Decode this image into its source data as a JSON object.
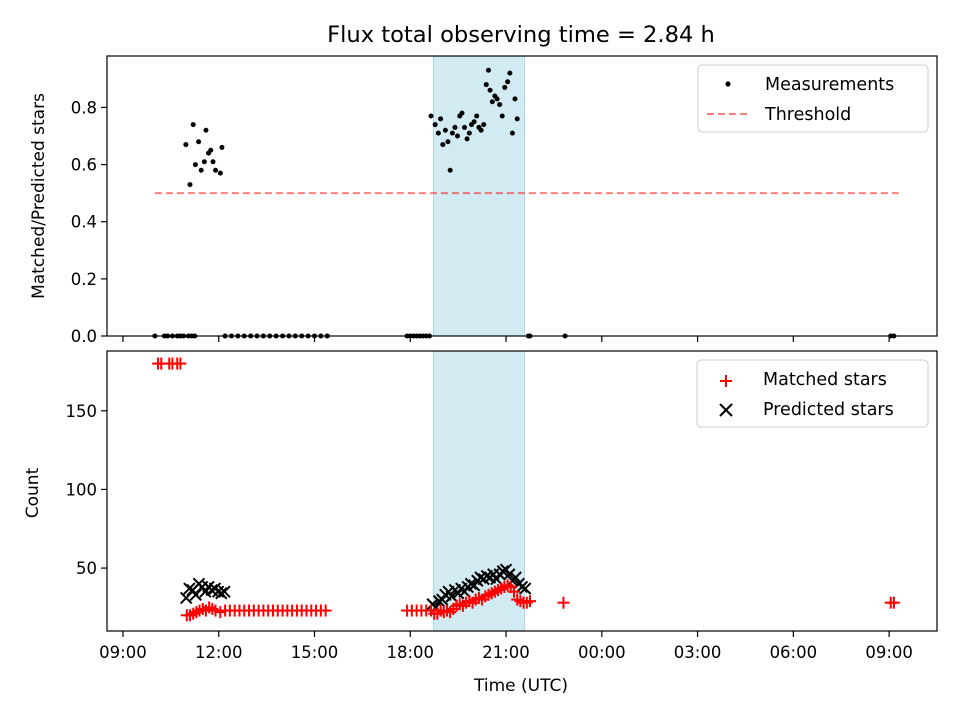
{
  "chart_data": {
    "title": "Flux total observing time = 2.84 h",
    "type": "scatter",
    "shaded_window": {
      "start_h": 18.73,
      "end_h": 21.58,
      "color": "#add8e6"
    },
    "x_axis": {
      "label": "Time (UTC)",
      "ticks": [
        {
          "h": 9,
          "label": "09:00"
        },
        {
          "h": 12,
          "label": "12:00"
        },
        {
          "h": 15,
          "label": "15:00"
        },
        {
          "h": 18,
          "label": "18:00"
        },
        {
          "h": 21,
          "label": "21:00"
        },
        {
          "h": 24,
          "label": "00:00"
        },
        {
          "h": 27,
          "label": "03:00"
        },
        {
          "h": 30,
          "label": "06:00"
        },
        {
          "h": 33,
          "label": "09:00"
        }
      ]
    },
    "panels": [
      {
        "id": "ratio",
        "ylabel": "Matched/Predicted stars",
        "ylim": [
          0,
          0.98
        ],
        "yticks": [
          {
            "v": 0.0,
            "label": "0.0"
          },
          {
            "v": 0.2,
            "label": "0.2"
          },
          {
            "v": 0.4,
            "label": "0.4"
          },
          {
            "v": 0.6,
            "label": "0.6"
          },
          {
            "v": 0.8,
            "label": "0.8"
          }
        ],
        "legend": {
          "position": "upper right",
          "items": [
            "Measurements",
            "Threshold"
          ]
        },
        "threshold": {
          "name": "Threshold",
          "y": 0.5,
          "x_range": [
            10.0,
            33.3
          ],
          "color": "#ff0000",
          "opacity": 0.5,
          "dashed": true
        },
        "measurements": {
          "name": "Measurements",
          "color": "#000000",
          "points": [
            [
              10.97,
              0.67
            ],
            [
              11.1,
              0.53
            ],
            [
              11.2,
              0.74
            ],
            [
              11.27,
              0.6
            ],
            [
              11.37,
              0.68
            ],
            [
              11.45,
              0.58
            ],
            [
              11.55,
              0.61
            ],
            [
              11.6,
              0.72
            ],
            [
              11.68,
              0.64
            ],
            [
              11.75,
              0.65
            ],
            [
              11.82,
              0.61
            ],
            [
              11.9,
              0.58
            ],
            [
              12.05,
              0.57
            ],
            [
              12.1,
              0.66
            ],
            [
              18.65,
              0.77
            ],
            [
              18.78,
              0.74
            ],
            [
              18.88,
              0.71
            ],
            [
              18.95,
              0.76
            ],
            [
              19.02,
              0.67
            ],
            [
              19.1,
              0.72
            ],
            [
              19.18,
              0.68
            ],
            [
              19.25,
              0.58
            ],
            [
              19.32,
              0.71
            ],
            [
              19.4,
              0.73
            ],
            [
              19.48,
              0.7
            ],
            [
              19.55,
              0.77
            ],
            [
              19.62,
              0.78
            ],
            [
              19.7,
              0.73
            ],
            [
              19.78,
              0.69
            ],
            [
              19.85,
              0.71
            ],
            [
              19.92,
              0.74
            ],
            [
              20.0,
              0.75
            ],
            [
              20.08,
              0.77
            ],
            [
              20.15,
              0.73
            ],
            [
              20.22,
              0.72
            ],
            [
              20.3,
              0.74
            ],
            [
              20.38,
              0.88
            ],
            [
              20.45,
              0.93
            ],
            [
              20.5,
              0.86
            ],
            [
              20.57,
              0.82
            ],
            [
              20.65,
              0.84
            ],
            [
              20.72,
              0.83
            ],
            [
              20.8,
              0.81
            ],
            [
              20.88,
              0.77
            ],
            [
              20.96,
              0.87
            ],
            [
              21.05,
              0.89
            ],
            [
              21.12,
              0.92
            ],
            [
              21.2,
              0.71
            ],
            [
              21.28,
              0.83
            ],
            [
              21.35,
              0.76
            ],
            [
              10.0,
              0
            ],
            [
              10.3,
              0
            ],
            [
              10.4,
              0
            ],
            [
              10.55,
              0
            ],
            [
              10.7,
              0
            ],
            [
              10.8,
              0
            ],
            [
              10.9,
              0
            ],
            [
              11.05,
              0
            ],
            [
              11.15,
              0
            ],
            [
              11.25,
              0
            ],
            [
              12.2,
              0
            ],
            [
              12.4,
              0
            ],
            [
              12.6,
              0
            ],
            [
              12.8,
              0
            ],
            [
              13.0,
              0
            ],
            [
              13.2,
              0
            ],
            [
              13.4,
              0
            ],
            [
              13.6,
              0
            ],
            [
              13.8,
              0
            ],
            [
              14.0,
              0
            ],
            [
              14.2,
              0
            ],
            [
              14.4,
              0
            ],
            [
              14.6,
              0
            ],
            [
              14.8,
              0
            ],
            [
              15.0,
              0
            ],
            [
              15.2,
              0
            ],
            [
              15.4,
              0
            ],
            [
              17.9,
              0
            ],
            [
              18.0,
              0
            ],
            [
              18.1,
              0
            ],
            [
              18.2,
              0
            ],
            [
              18.3,
              0
            ],
            [
              18.4,
              0
            ],
            [
              18.5,
              0
            ],
            [
              18.6,
              0
            ],
            [
              21.7,
              0
            ],
            [
              21.75,
              0
            ],
            [
              22.85,
              0
            ],
            [
              33.05,
              0
            ],
            [
              33.15,
              0
            ]
          ]
        }
      },
      {
        "id": "counts",
        "ylabel": "Count",
        "ylim": [
          10,
          188
        ],
        "yticks": [
          {
            "v": 50,
            "label": "50"
          },
          {
            "v": 100,
            "label": "100"
          },
          {
            "v": 150,
            "label": "150"
          }
        ],
        "legend": {
          "position": "upper right",
          "items": [
            "Matched stars",
            "Predicted stars"
          ]
        },
        "matched": {
          "name": "Matched stars",
          "color": "#ff0000",
          "marker": "plus",
          "points": [
            [
              10.1,
              180
            ],
            [
              10.2,
              180
            ],
            [
              10.45,
              180
            ],
            [
              10.55,
              180
            ],
            [
              10.7,
              180
            ],
            [
              10.8,
              180
            ],
            [
              11.0,
              20
            ],
            [
              11.1,
              20
            ],
            [
              11.2,
              21
            ],
            [
              11.3,
              22
            ],
            [
              11.4,
              23
            ],
            [
              11.5,
              24
            ],
            [
              11.6,
              23
            ],
            [
              11.7,
              25
            ],
            [
              11.8,
              24
            ],
            [
              11.9,
              23
            ],
            [
              12.05,
              22
            ],
            [
              12.2,
              23
            ],
            [
              12.35,
              23
            ],
            [
              12.5,
              23
            ],
            [
              12.65,
              23
            ],
            [
              12.8,
              23
            ],
            [
              12.95,
              23
            ],
            [
              13.1,
              23
            ],
            [
              13.25,
              23
            ],
            [
              13.4,
              23
            ],
            [
              13.55,
              23
            ],
            [
              13.7,
              23
            ],
            [
              13.85,
              23
            ],
            [
              14.0,
              23
            ],
            [
              14.15,
              23
            ],
            [
              14.3,
              23
            ],
            [
              14.45,
              23
            ],
            [
              14.6,
              23
            ],
            [
              14.75,
              23
            ],
            [
              14.9,
              23
            ],
            [
              15.05,
              23
            ],
            [
              15.2,
              23
            ],
            [
              15.35,
              23
            ],
            [
              17.9,
              23
            ],
            [
              18.05,
              23
            ],
            [
              18.2,
              23
            ],
            [
              18.35,
              23
            ],
            [
              18.5,
              23
            ],
            [
              18.65,
              23
            ],
            [
              18.75,
              21
            ],
            [
              18.85,
              21
            ],
            [
              18.95,
              23
            ],
            [
              19.05,
              22
            ],
            [
              19.15,
              23
            ],
            [
              19.25,
              22
            ],
            [
              19.35,
              24
            ],
            [
              19.45,
              26
            ],
            [
              19.55,
              27
            ],
            [
              19.65,
              26
            ],
            [
              19.75,
              28
            ],
            [
              19.85,
              29
            ],
            [
              19.95,
              28
            ],
            [
              20.05,
              30
            ],
            [
              20.15,
              31
            ],
            [
              20.25,
              30
            ],
            [
              20.35,
              32
            ],
            [
              20.45,
              33
            ],
            [
              20.55,
              34
            ],
            [
              20.65,
              35
            ],
            [
              20.75,
              36
            ],
            [
              20.85,
              37
            ],
            [
              20.95,
              38
            ],
            [
              21.05,
              39
            ],
            [
              21.15,
              38
            ],
            [
              21.25,
              35
            ],
            [
              21.35,
              30
            ],
            [
              21.45,
              29
            ],
            [
              21.55,
              28
            ],
            [
              21.65,
              28
            ],
            [
              21.75,
              29
            ],
            [
              22.8,
              28
            ],
            [
              33.05,
              28
            ],
            [
              33.15,
              28
            ]
          ]
        },
        "predicted": {
          "name": "Predicted stars",
          "color": "#000000",
          "marker": "x",
          "points": [
            [
              10.98,
              31
            ],
            [
              11.08,
              37
            ],
            [
              11.18,
              36
            ],
            [
              11.28,
              33
            ],
            [
              11.38,
              40
            ],
            [
              11.48,
              38
            ],
            [
              11.58,
              35
            ],
            [
              11.68,
              38
            ],
            [
              11.78,
              36
            ],
            [
              11.88,
              37
            ],
            [
              11.98,
              35
            ],
            [
              12.08,
              34
            ],
            [
              12.18,
              35
            ],
            [
              18.7,
              27
            ],
            [
              18.8,
              25
            ],
            [
              18.9,
              29
            ],
            [
              19.0,
              30
            ],
            [
              19.1,
              33
            ],
            [
              19.2,
              35
            ],
            [
              19.3,
              32
            ],
            [
              19.4,
              36
            ],
            [
              19.5,
              34
            ],
            [
              19.6,
              37
            ],
            [
              19.7,
              35
            ],
            [
              19.8,
              38
            ],
            [
              19.9,
              40
            ],
            [
              20.0,
              39
            ],
            [
              20.1,
              42
            ],
            [
              20.2,
              44
            ],
            [
              20.3,
              43
            ],
            [
              20.4,
              45
            ],
            [
              20.5,
              44
            ],
            [
              20.6,
              46
            ],
            [
              20.7,
              43
            ],
            [
              20.8,
              46
            ],
            [
              20.9,
              48
            ],
            [
              21.0,
              49
            ],
            [
              21.1,
              46
            ],
            [
              21.2,
              42
            ],
            [
              21.3,
              44
            ],
            [
              21.4,
              40
            ],
            [
              21.5,
              38
            ],
            [
              21.6,
              37
            ]
          ]
        }
      }
    ]
  }
}
